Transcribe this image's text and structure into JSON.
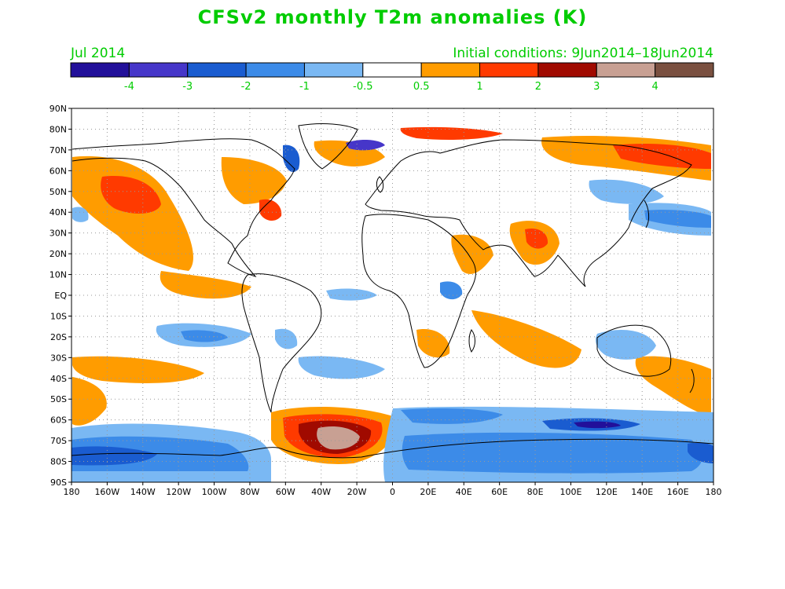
{
  "title": "CFSv2 monthly T2m anomalies (K)",
  "month_label": "Jul 2014",
  "initial_conditions": "Initial conditions: 9Jun2014–18Jun2014",
  "legend": {
    "colors": [
      "#22109a",
      "#4636c9",
      "#1a5cd0",
      "#3c8be8",
      "#7ab8f3",
      "#ffffff",
      "#ff9c00",
      "#ff3a00",
      "#a00a00",
      "#c8a093",
      "#7a5040"
    ],
    "labels": [
      "-4",
      "-3",
      "-2",
      "-1",
      "-0.5",
      "0.5",
      "1",
      "2",
      "3",
      "4"
    ]
  },
  "axes": {
    "lat_labels": [
      "90N",
      "80N",
      "70N",
      "60N",
      "50N",
      "40N",
      "30N",
      "20N",
      "10N",
      "EQ",
      "10S",
      "20S",
      "30S",
      "40S",
      "50S",
      "60S",
      "70S",
      "80S",
      "90S"
    ],
    "lon_labels": [
      "180",
      "160W",
      "140W",
      "120W",
      "100W",
      "80W",
      "60W",
      "40W",
      "20W",
      "0",
      "20E",
      "40E",
      "60E",
      "80E",
      "100E",
      "120E",
      "140E",
      "160E",
      "180"
    ]
  }
}
